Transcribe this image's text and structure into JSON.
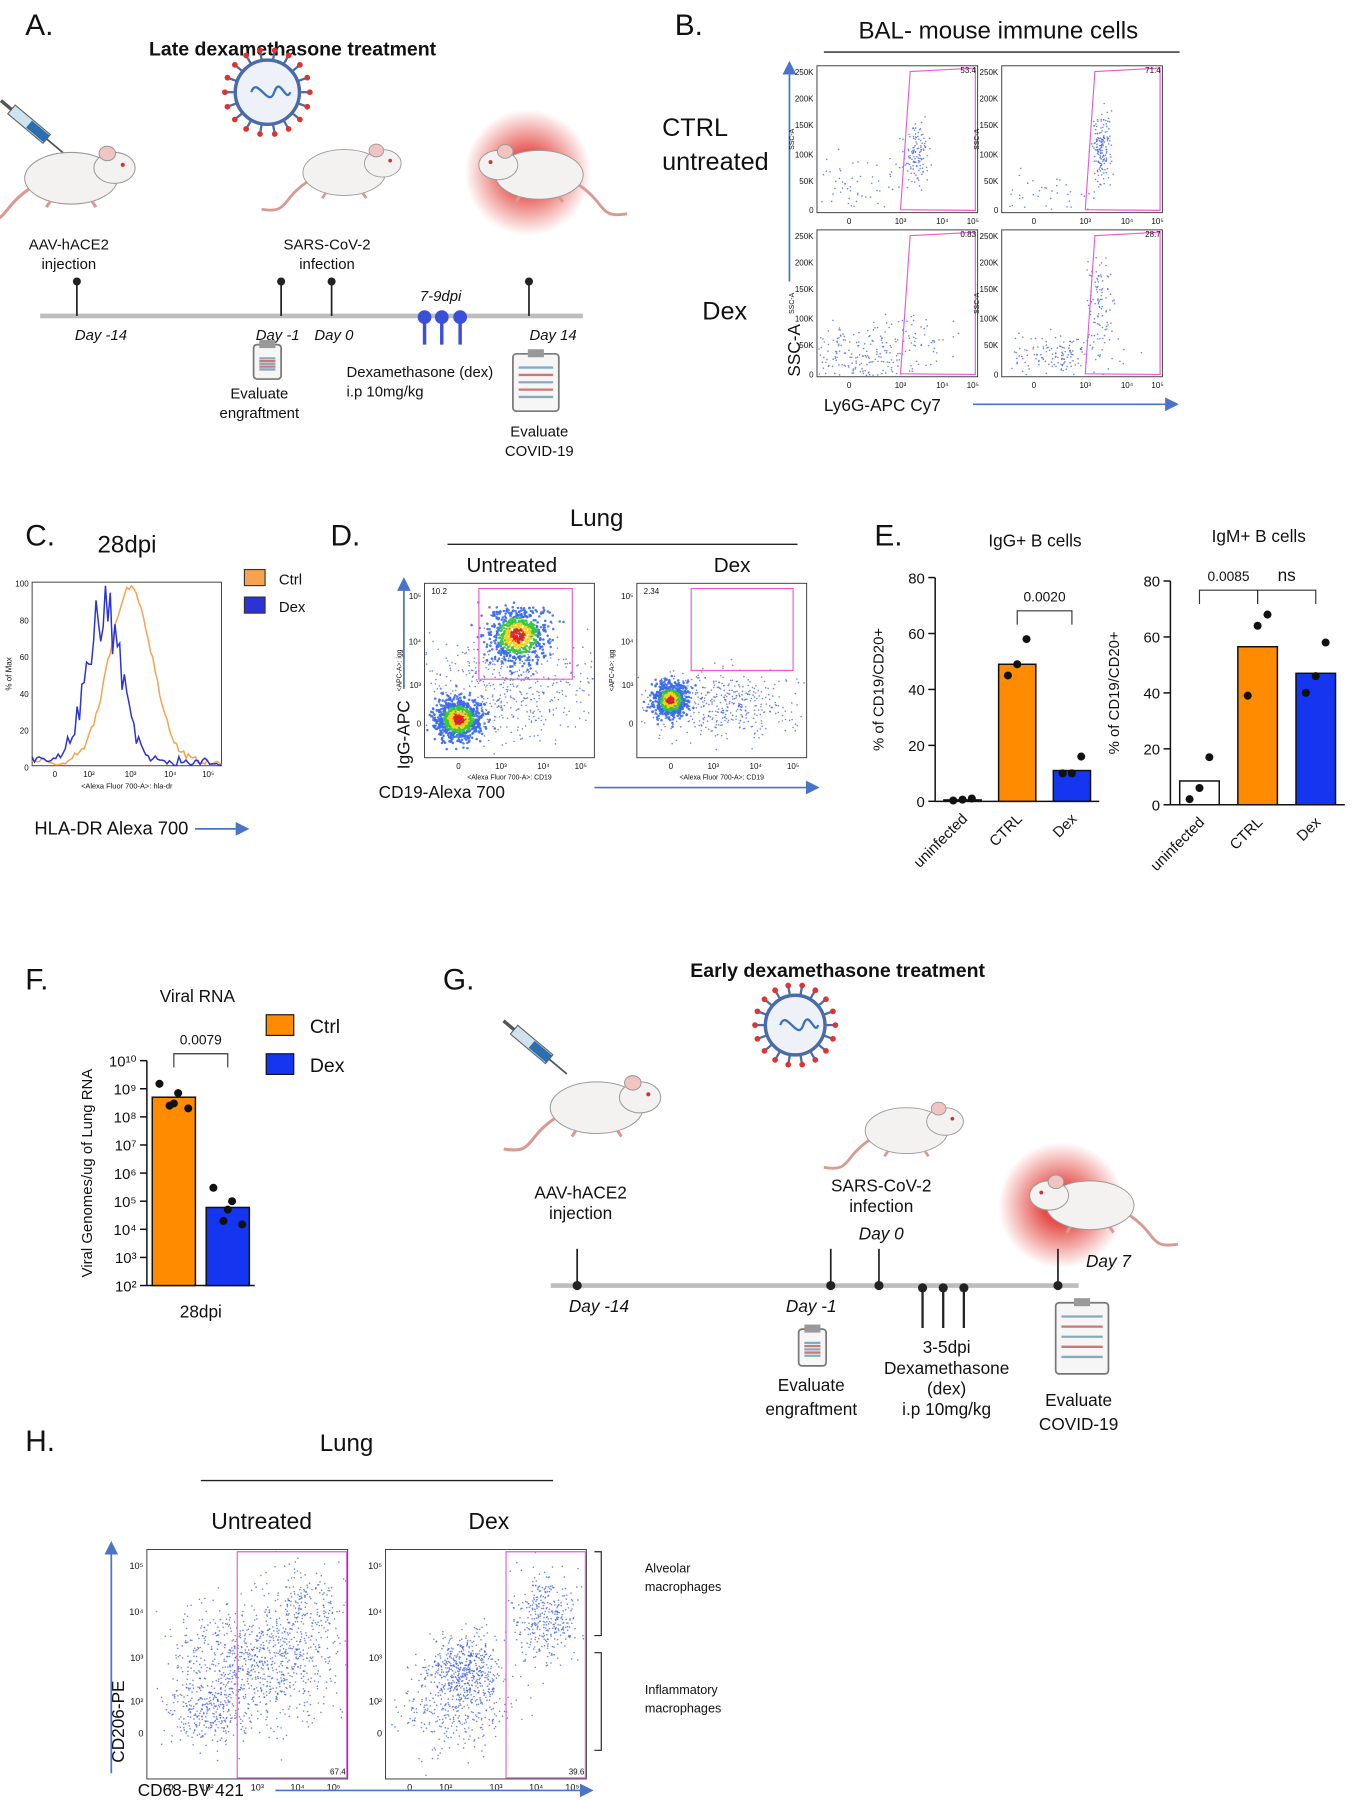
{
  "panel_a": {
    "label": "A.",
    "title": "Late dexamethasone treatment",
    "injection": [
      "AAV-hACE2",
      "injection"
    ],
    "infection": [
      "SARS-CoV-2",
      "infection"
    ],
    "days": [
      "Day -14",
      "Day -1",
      "Day 0",
      "Day 14"
    ],
    "window": "7-9dpi",
    "engraftment": [
      "Evaluate",
      "engraftment"
    ],
    "treatment": [
      "Dexamethasone (dex)",
      "i.p 10mg/kg"
    ],
    "covid": [
      "Evaluate",
      "COVID-19"
    ]
  },
  "panel_b": {
    "label": "B.",
    "title": "BAL- mouse immune cells",
    "groups": [
      [
        "CTRL",
        "untreated"
      ],
      [
        "Dex"
      ]
    ],
    "y_axis": "SSC-A",
    "x_axis": "Ly6G-APC Cy7",
    "plot_ylabel": "SSC-A",
    "yticks": [
      "250K",
      "200K",
      "150K",
      "100K",
      "50K",
      "0"
    ],
    "xticks": [
      "0",
      "10³",
      "10⁴",
      "10⁵"
    ],
    "gates": [
      "53.4",
      "71.4",
      "0.83",
      "28.7"
    ]
  },
  "panel_c": {
    "label": "C.",
    "title": "28dpi",
    "legend": [
      "Ctrl",
      "Dex"
    ],
    "colors": [
      "#f7a24f",
      "#2b33d6"
    ],
    "ylabel": "% of Max",
    "yticks": [
      "100",
      "80",
      "60",
      "40",
      "20",
      "0"
    ],
    "xticks": [
      "0",
      "10²",
      "10³",
      "10⁴",
      "10⁵"
    ],
    "plot_xlabel": "<Alexa Fluor 700-A>: hla-dr",
    "x_axis": "HLA-DR Alexa 700"
  },
  "panel_d": {
    "label": "D.",
    "title": "Lung",
    "groups": [
      "Untreated",
      "Dex"
    ],
    "y_axis": "IgG-APC",
    "x_axis": "CD19-Alexa 700",
    "plot_ylabel": "<APC-A>: igg",
    "plot_xlabel": "<Alexa Fluor 700-A>: CD19",
    "yticks": [
      "10⁵",
      "10⁴",
      "10³",
      "0"
    ],
    "xticks": [
      "0",
      "10³",
      "10⁴",
      "10⁵"
    ],
    "gates": [
      "10.2",
      "2.34"
    ]
  },
  "panel_e": {
    "label": "E."
  },
  "panel_f": {
    "label": "F."
  },
  "panel_g": {
    "label": "G.",
    "title": "Early dexamethasone treatment",
    "injection": [
      "AAV-hACE2",
      "injection"
    ],
    "infection": [
      "SARS-CoV-2",
      "infection"
    ],
    "days": [
      "Day -14",
      "Day -1",
      "Day 0",
      "Day 7"
    ],
    "treatment": [
      "3-5dpi",
      "Dexamethasone",
      "(dex)",
      "i.p 10mg/kg"
    ],
    "engraftment": [
      "Evaluate",
      "engraftment"
    ],
    "covid": [
      "Evaluate",
      "COVID-19"
    ]
  },
  "panel_h": {
    "label": "H.",
    "title": "Lung",
    "groups": [
      "Untreated",
      "Dex"
    ],
    "y_axis": "CD206-PE",
    "x_axis": "CD68-BV 421",
    "yticks": [
      "10⁵",
      "10⁴",
      "10³",
      "10²",
      "0"
    ],
    "xticks": [
      "0",
      "10²",
      "10³",
      "10⁴",
      "10⁵"
    ],
    "gates": [
      "67.4",
      "39.6"
    ],
    "populations": [
      [
        "Alveolar",
        "macrophages"
      ],
      [
        "Inflammatory",
        "macrophages"
      ]
    ]
  },
  "chart_data": [
    {
      "type": "bar",
      "title": "IgG+ B cells",
      "ylabel": "% of CD19/CD20+",
      "categories": [
        "uninfected",
        "CTRL",
        "Dex"
      ],
      "values": [
        0.5,
        49,
        11
      ],
      "colors": [
        "#ffffff",
        "#ff8c00",
        "#1436f0"
      ],
      "points": [
        [
          0.3,
          0.6,
          1
        ],
        [
          45,
          49,
          58
        ],
        [
          10,
          10,
          16
        ]
      ],
      "ylim": [
        0,
        80
      ],
      "yticks": [
        0,
        20,
        40,
        60,
        80
      ],
      "annotations": [
        "0.0020"
      ]
    },
    {
      "type": "bar",
      "title": "IgM+ B cells",
      "ylabel": "% of CD19/CD20+",
      "categories": [
        "uninfected",
        "CTRL",
        "Dex"
      ],
      "values": [
        8.5,
        56.5,
        47
      ],
      "colors": [
        "#ffffff",
        "#ff8c00",
        "#1436f0"
      ],
      "points": [
        [
          2,
          6,
          17
        ],
        [
          39,
          64,
          68
        ],
        [
          40,
          46,
          58
        ]
      ],
      "ylim": [
        0,
        80
      ],
      "yticks": [
        0,
        20,
        40,
        60,
        80
      ],
      "annotations": [
        "0.0085",
        "ns"
      ]
    },
    {
      "type": "bar",
      "title": "Viral RNA",
      "ylabel": "Viral Genomes/ug of Lung RNA",
      "categories": [
        "28dpi"
      ],
      "log_scale": true,
      "series": [
        {
          "name": "Ctrl",
          "color": "#ff8c00",
          "values": [
            500000000
          ],
          "points": [
            1500000000,
            700000000,
            300000000,
            250000000,
            200000000
          ]
        },
        {
          "name": "Dex",
          "color": "#1436f0",
          "values": [
            60000
          ],
          "points": [
            300000,
            100000,
            50000,
            20000,
            15000
          ]
        }
      ],
      "ylim": [
        100,
        10000000000
      ],
      "yticks": [
        {
          "value": 100,
          "label": "10²"
        },
        {
          "value": 1000,
          "label": "10³"
        },
        {
          "value": 10000,
          "label": "10⁴"
        },
        {
          "value": 100000,
          "label": "10⁵"
        },
        {
          "value": 1000000,
          "label": "10⁶"
        },
        {
          "value": 10000000,
          "label": "10⁷"
        },
        {
          "value": 100000000,
          "label": "10⁸"
        },
        {
          "value": 1000000000,
          "label": "10⁹"
        },
        {
          "value": 10000000000,
          "label": "10¹⁰"
        }
      ],
      "annotations": [
        "0.0079"
      ]
    }
  ]
}
